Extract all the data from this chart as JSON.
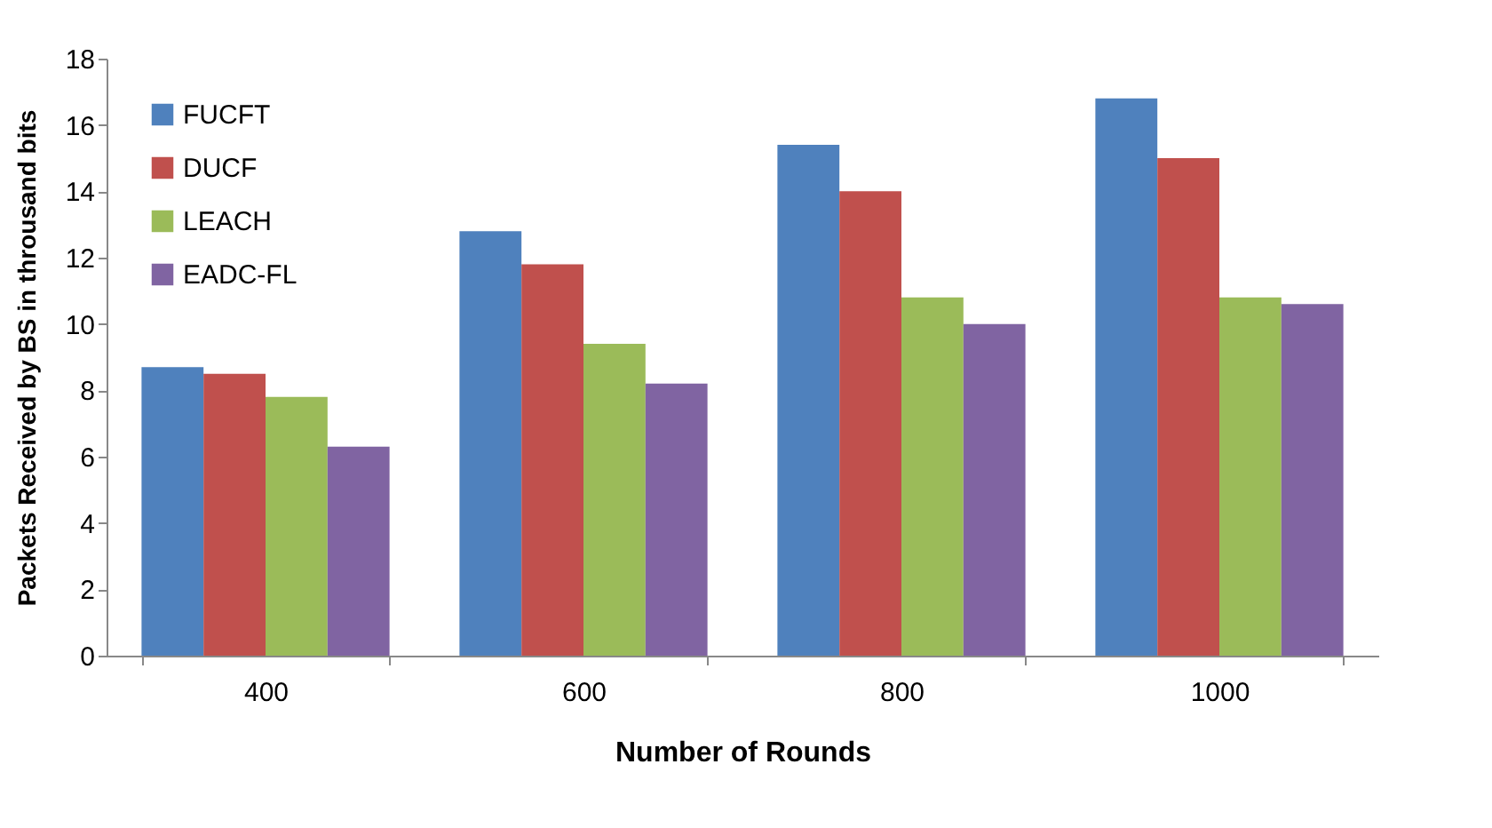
{
  "chart_data": {
    "type": "bar",
    "xlabel": "Number of Rounds",
    "ylabel": "Packets Received by BS in throusand bits",
    "categories": [
      "400",
      "600",
      "800",
      "1000"
    ],
    "series": [
      {
        "name": "FUCFT",
        "color": "#4f81bd",
        "values": [
          8.7,
          12.8,
          15.4,
          16.8
        ]
      },
      {
        "name": "DUCF",
        "color": "#c0504d",
        "values": [
          8.5,
          11.8,
          14,
          15
        ]
      },
      {
        "name": "LEACH",
        "color": "#9bbb59",
        "values": [
          7.8,
          9.4,
          10.8,
          10.8
        ]
      },
      {
        "name": "EADC-FL",
        "color": "#8064a2",
        "values": [
          6.3,
          8.2,
          10,
          10.6
        ]
      }
    ],
    "ylim": [
      0,
      18
    ],
    "yticks": [
      0,
      2,
      4,
      6,
      8,
      10,
      12,
      14,
      16,
      18
    ],
    "grid": false,
    "legend": "top left"
  }
}
